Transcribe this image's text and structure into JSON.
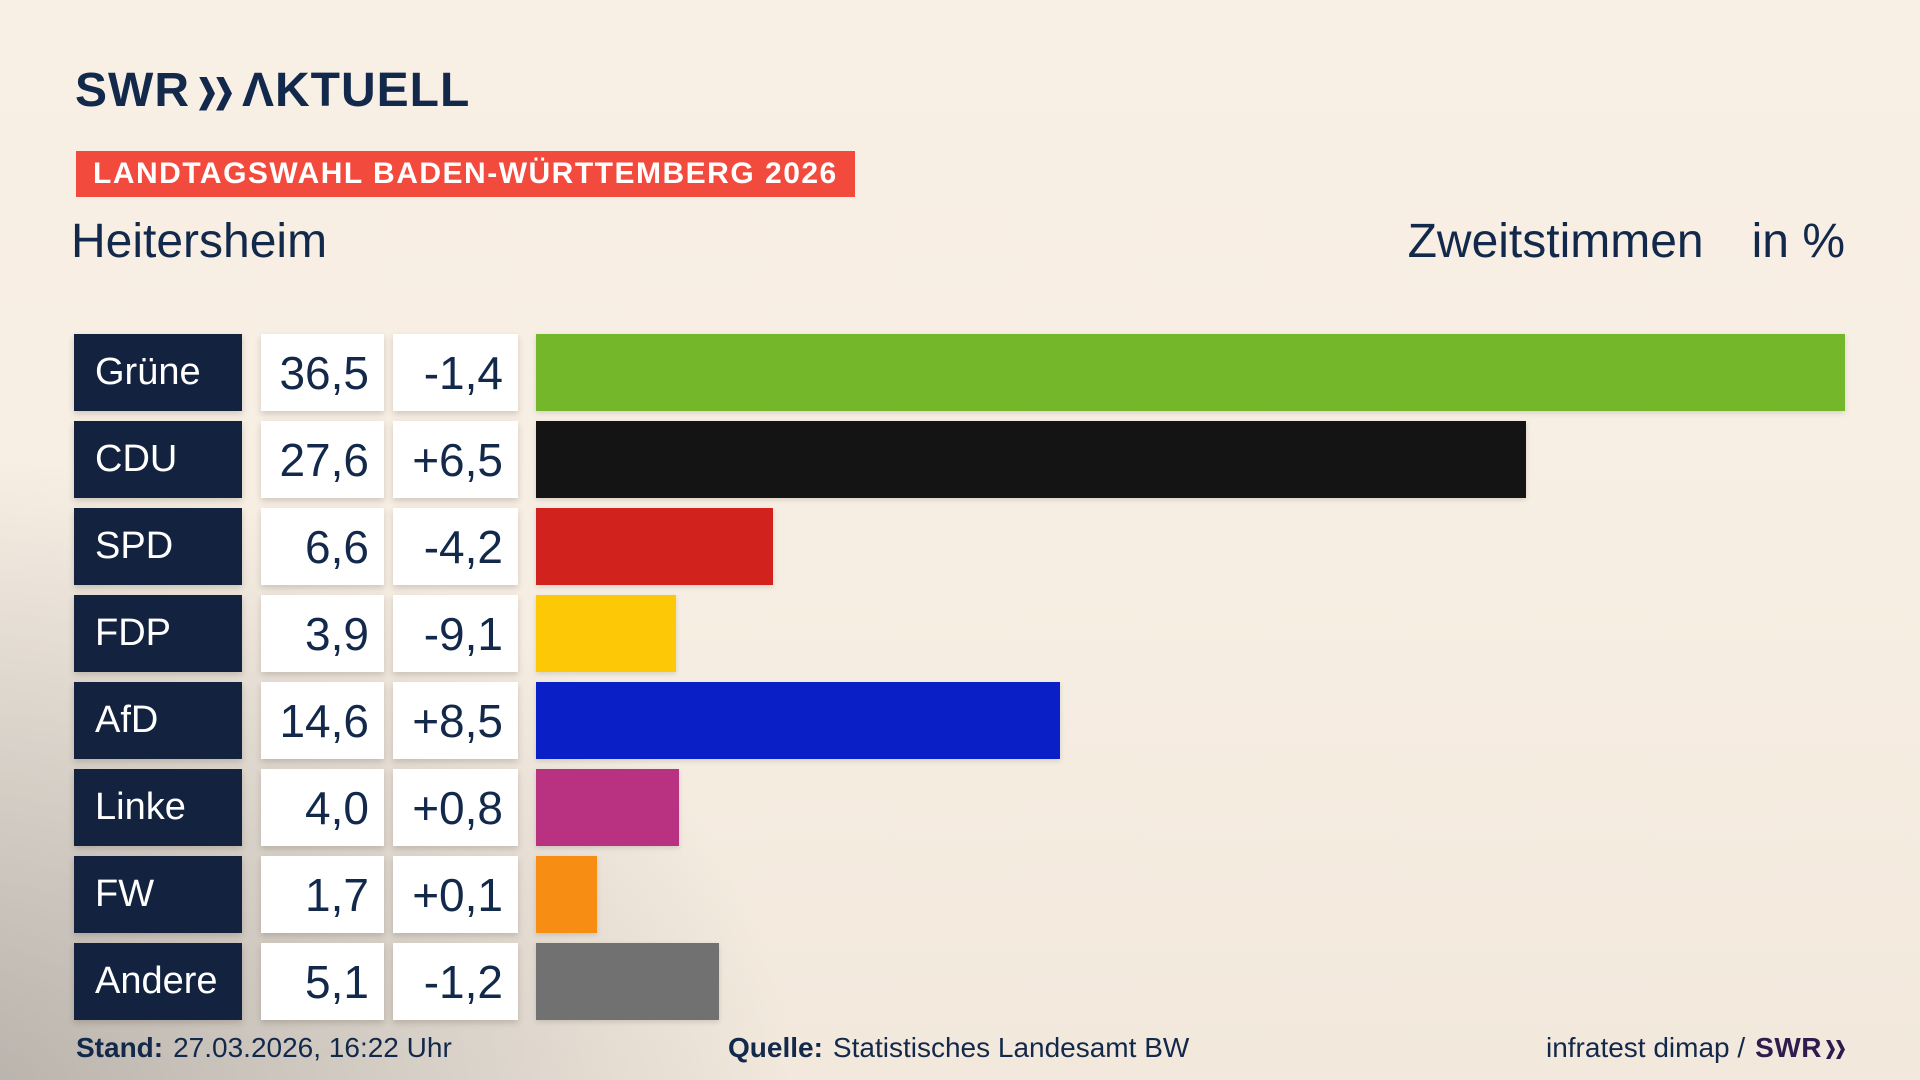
{
  "logo": {
    "brand": "SWR",
    "suffix": "ΛKTUELL"
  },
  "banner": {
    "text": "LANDTAGSWAHL BADEN-WÜRTTEMBERG 2026"
  },
  "header": {
    "title": "Heitersheim",
    "vote_label": "Zweitstimmen",
    "unit_label": "in %"
  },
  "chart_data": {
    "type": "bar",
    "orientation": "horizontal",
    "title": "Zweitstimmen in %",
    "region": "Heitersheim",
    "unit": "%",
    "xlim": [
      0,
      36.5
    ],
    "grid": false,
    "legend": "none",
    "categories": [
      "Grüne",
      "CDU",
      "SPD",
      "FDP",
      "AfD",
      "Linke",
      "FW",
      "Andere"
    ],
    "values": [
      36.5,
      27.6,
      6.6,
      3.9,
      14.6,
      4.0,
      1.7,
      5.1
    ],
    "value_labels": [
      "36,5",
      "27,6",
      "6,6",
      "3,9",
      "14,6",
      "4,0",
      "1,7",
      "5,1"
    ],
    "changes": [
      -1.4,
      6.5,
      -4.2,
      -9.1,
      8.5,
      0.8,
      0.1,
      -1.2
    ],
    "change_labels": [
      "-1,4",
      "+6,5",
      "-4,2",
      "-9,1",
      "+8,5",
      "+0,8",
      "+0,1",
      "-1,2"
    ],
    "bar_colors": [
      "#74b72b",
      "#141414",
      "#d2221e",
      "#fdc805",
      "#0b1fc6",
      "#b93181",
      "#f88d14",
      "#717171"
    ]
  },
  "footer": {
    "stand_label": "Stand:",
    "stand_value": "27.03.2026, 16:22 Uhr",
    "source_label": "Quelle:",
    "source_value": "Statistisches Landesamt BW",
    "credit_prefix": "infratest dimap /",
    "credit_brand": "SWR"
  },
  "colors": {
    "background_top": "#f7eee3",
    "background_shadow": "#aba7a1",
    "navy": "#13294b",
    "label_box": "#13233f",
    "banner_red": "#f24b3d",
    "value_box": "#ffffff",
    "credit_purple": "#2f1b4e"
  }
}
